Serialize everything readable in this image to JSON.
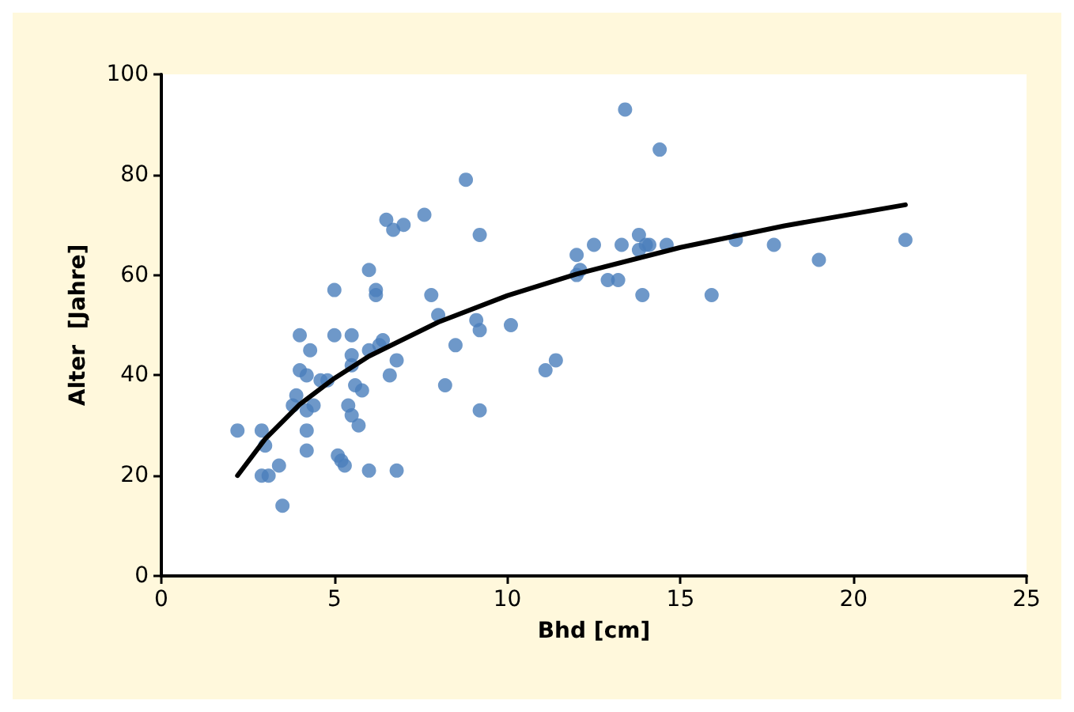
{
  "chart_data": {
    "type": "scatter",
    "xlabel": "Bhd [cm]",
    "ylabel": "Alter  [Jahre]",
    "xlim": [
      0,
      25
    ],
    "ylim": [
      0,
      100
    ],
    "xticks": [
      0,
      5,
      10,
      15,
      20,
      25
    ],
    "yticks": [
      0,
      20,
      40,
      60,
      80,
      100
    ],
    "grid": false,
    "marker": "circle",
    "series": [
      {
        "color": "#4a7ebb",
        "x": [
          2.2,
          2.9,
          3.0,
          2.9,
          3.1,
          3.4,
          3.5,
          3.8,
          3.9,
          4.0,
          4.0,
          4.2,
          4.2,
          4.2,
          4.2,
          4.3,
          4.4,
          4.6,
          4.8,
          5.0,
          5.0,
          5.1,
          5.2,
          5.3,
          5.4,
          5.5,
          5.5,
          5.5,
          5.5,
          5.6,
          5.7,
          5.8,
          6.0,
          6.0,
          6.0,
          6.2,
          6.2,
          6.3,
          6.4,
          6.5,
          6.6,
          6.7,
          6.8,
          6.8,
          7.0,
          7.6,
          7.8,
          8.0,
          8.2,
          8.5,
          8.8,
          9.1,
          9.2,
          9.2,
          9.2,
          10.1,
          11.1,
          11.4,
          12.0,
          12.0,
          12.1,
          12.5,
          12.9,
          13.2,
          13.3,
          13.4,
          13.8,
          13.8,
          13.9,
          14.0,
          14.1,
          14.4,
          14.6,
          15.9,
          16.6,
          17.7,
          19.0,
          21.5
        ],
        "values": [
          29,
          29,
          26,
          20,
          20,
          22,
          14,
          34,
          36,
          41,
          48,
          40,
          33,
          29,
          25,
          45,
          34,
          39,
          39,
          48,
          57,
          24,
          23,
          22,
          34,
          32,
          48,
          44,
          42,
          38,
          30,
          37,
          61,
          45,
          21,
          57,
          56,
          46,
          47,
          71,
          40,
          69,
          43,
          21,
          70,
          72,
          56,
          52,
          38,
          46,
          79,
          51,
          68,
          49,
          33,
          50,
          41,
          43,
          64,
          60,
          61,
          66,
          59,
          59,
          66,
          93,
          68,
          65,
          56,
          66,
          66,
          85,
          66,
          56,
          67,
          66,
          63,
          67
        ]
      },
      {
        "type": "line",
        "color": "#000000",
        "marker": "none",
        "line_style": "solid",
        "x": [
          2.2,
          3,
          4,
          5,
          6,
          8,
          10,
          12,
          15,
          18,
          21.5
        ],
        "values": [
          20,
          27.3,
          34.2,
          39.4,
          43.8,
          50.6,
          55.9,
          60.2,
          65.5,
          69.8,
          74
        ]
      }
    ]
  }
}
